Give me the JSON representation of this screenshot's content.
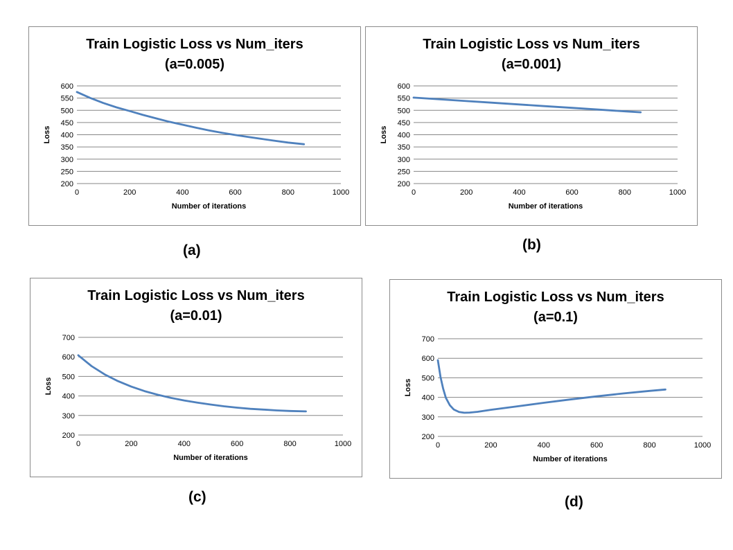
{
  "chart_data": [
    {
      "type": "line",
      "title": "Train Logistic Loss vs Num_iters",
      "subtitle": "(a=0.005)",
      "caption": "(a)",
      "xlabel": "Number of iterations",
      "ylabel": "Loss",
      "xlim": [
        0,
        1000
      ],
      "ylim": [
        200,
        600
      ],
      "xticks": [
        "0",
        "200",
        "400",
        "600",
        "800",
        "1000"
      ],
      "yticks": [
        "200",
        "250",
        "300",
        "350",
        "400",
        "450",
        "500",
        "550",
        "600"
      ],
      "grid": true,
      "line_color": "#4f81bd",
      "series": [
        {
          "x": [
            0,
            50,
            100,
            150,
            200,
            250,
            300,
            350,
            400,
            450,
            500,
            550,
            600,
            650,
            700,
            750,
            800,
            860
          ],
          "y": [
            575,
            551,
            530,
            512,
            497,
            481,
            467,
            453,
            441,
            429,
            418,
            408,
            399,
            391,
            383,
            375,
            368,
            361
          ]
        }
      ]
    },
    {
      "type": "line",
      "title": "Train Logistic Loss vs Num_iters",
      "subtitle": "(a=0.001)",
      "caption": "(b)",
      "xlabel": "Number of iterations",
      "ylabel": "Loss",
      "xlim": [
        0,
        1000
      ],
      "ylim": [
        200,
        600
      ],
      "xticks": [
        "0",
        "200",
        "400",
        "600",
        "800",
        "1000"
      ],
      "yticks": [
        "200",
        "250",
        "300",
        "350",
        "400",
        "450",
        "500",
        "550",
        "600"
      ],
      "grid": true,
      "line_color": "#4f81bd",
      "series": [
        {
          "x": [
            0,
            100,
            200,
            300,
            400,
            500,
            600,
            700,
            800,
            860
          ],
          "y": [
            552,
            545,
            538,
            531,
            524,
            517,
            510,
            503,
            496,
            492
          ]
        }
      ]
    },
    {
      "type": "line",
      "title": "Train Logistic Loss vs Num_iters",
      "subtitle": "(a=0.01)",
      "caption": "(c)",
      "xlabel": "Number of iterations",
      "ylabel": "Loss",
      "xlim": [
        0,
        1000
      ],
      "ylim": [
        200,
        700
      ],
      "xticks": [
        "0",
        "200",
        "400",
        "600",
        "800",
        "1000"
      ],
      "yticks": [
        "200",
        "300",
        "400",
        "500",
        "600",
        "700"
      ],
      "grid": true,
      "line_color": "#4f81bd",
      "series": [
        {
          "x": [
            0,
            50,
            100,
            150,
            200,
            250,
            300,
            350,
            400,
            450,
            500,
            550,
            600,
            650,
            700,
            750,
            800,
            860
          ],
          "y": [
            608,
            553,
            510,
            476,
            448,
            425,
            406,
            390,
            377,
            366,
            356,
            347,
            340,
            334,
            330,
            326,
            323,
            321
          ]
        }
      ]
    },
    {
      "type": "line",
      "title": "Train Logistic Loss vs Num_iters",
      "subtitle": "(a=0.1)",
      "caption": "(d)",
      "xlabel": "Number of iterations",
      "ylabel": "Loss",
      "xlim": [
        0,
        1000
      ],
      "ylim": [
        200,
        700
      ],
      "xticks": [
        "0",
        "200",
        "400",
        "600",
        "800",
        "1000"
      ],
      "yticks": [
        "200",
        "300",
        "400",
        "500",
        "600",
        "700"
      ],
      "grid": true,
      "line_color": "#4f81bd",
      "series": [
        {
          "x": [
            0,
            10,
            20,
            30,
            45,
            60,
            80,
            100,
            120,
            150,
            200,
            300,
            400,
            500,
            600,
            700,
            800,
            860
          ],
          "y": [
            590,
            505,
            445,
            398,
            360,
            338,
            325,
            321,
            322,
            326,
            336,
            354,
            372,
            389,
            405,
            420,
            433,
            440
          ]
        }
      ]
    }
  ]
}
